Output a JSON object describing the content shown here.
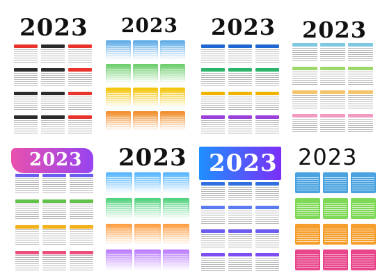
{
  "years": {
    "p1": "2023",
    "p2": "2023",
    "p3": "2023",
    "p4": "2023",
    "p5": "2023",
    "p6": "2023",
    "p7": "2023",
    "p8": "2023"
  },
  "colors": {
    "dark": "#2b2b2b",
    "red": "#e8322c",
    "rainbow": [
      "#5aa9e6",
      "#66cc66",
      "#f2c200",
      "#f08a24",
      "#e84a8a",
      "#a259d9"
    ],
    "banner_gradient": [
      "#1e90ff",
      "#7b2ff7"
    ],
    "brush_gradient": [
      "#e63da5",
      "#7a2ff0"
    ]
  }
}
